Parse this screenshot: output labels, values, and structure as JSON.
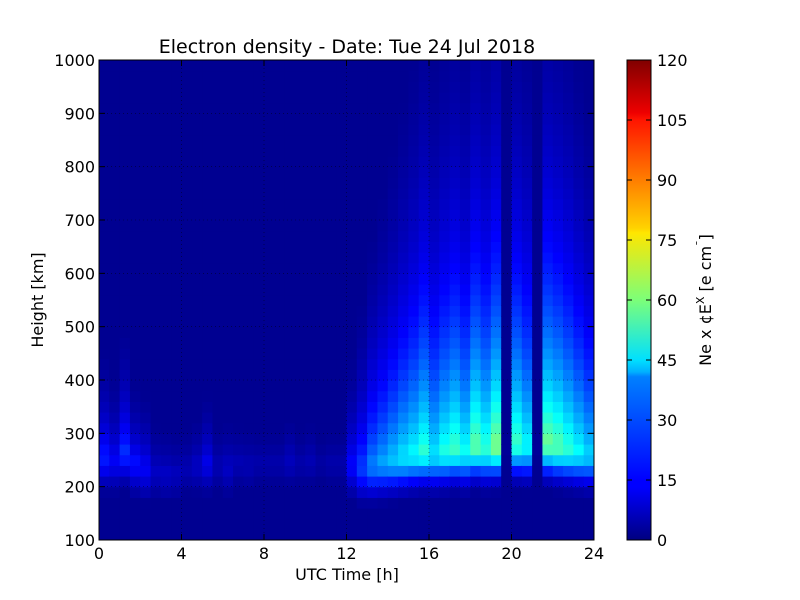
{
  "chart_data": {
    "type": "heatmap",
    "title": "Electron density - Date: Tue 24 Jul 2018",
    "xlabel": "UTC Time [h]",
    "ylabel": "Height [km]",
    "xlim": [
      0,
      24
    ],
    "ylim": [
      100,
      1000
    ],
    "x_ticks": [
      "0",
      "4",
      "8",
      "12",
      "16",
      "20",
      "24"
    ],
    "x_tick_values": [
      0,
      4,
      8,
      12,
      16,
      20,
      24
    ],
    "y_ticks": [
      "100",
      "200",
      "300",
      "400",
      "500",
      "600",
      "700",
      "800",
      "900",
      "1000"
    ],
    "y_tick_values": [
      100,
      200,
      300,
      400,
      500,
      600,
      700,
      800,
      900,
      1000
    ],
    "grid": true,
    "colormap": "jet",
    "colorbar": {
      "label": "Ne x ¢E^X  [e cm^-¯]",
      "label_text": "Ne x ¢E",
      "label_sup": "X",
      "label_unit": "[e cm",
      "label_unit_sup": "¯",
      "label_end": "]",
      "min": 0,
      "max": 120,
      "ticks": [
        "0",
        "15",
        "30",
        "45",
        "60",
        "75",
        "90",
        "105",
        "120"
      ],
      "tick_values": [
        0,
        15,
        30,
        45,
        60,
        75,
        90,
        105,
        120
      ]
    },
    "hours": [
      0,
      0.5,
      1,
      1.5,
      2,
      2.5,
      3,
      3.5,
      4,
      4.5,
      5,
      5.5,
      6,
      6.5,
      7,
      7.5,
      8,
      8.5,
      9,
      9.5,
      10,
      10.5,
      11,
      11.5,
      12,
      12.5,
      13,
      13.5,
      14,
      14.5,
      15,
      15.5,
      16,
      16.5,
      17,
      17.5,
      18,
      18.5,
      19,
      19.5,
      20,
      20.5,
      21,
      21.5,
      22,
      22.5,
      23,
      23.5
    ],
    "peak_density": [
      18,
      14,
      20,
      16,
      14,
      8,
      8,
      7,
      6,
      8,
      12,
      6,
      8,
      6,
      6,
      5,
      5,
      5,
      7,
      5,
      6,
      4,
      5,
      5,
      15,
      22,
      30,
      34,
      38,
      42,
      45,
      50,
      42,
      48,
      52,
      46,
      56,
      50,
      60,
      3,
      52,
      45,
      3,
      58,
      55,
      50,
      45,
      40
    ],
    "peak_height_km": [
      260,
      255,
      270,
      250,
      240,
      235,
      230,
      230,
      240,
      245,
      250,
      245,
      240,
      250,
      245,
      250,
      250,
      250,
      255,
      250,
      255,
      250,
      250,
      250,
      245,
      240,
      245,
      250,
      255,
      260,
      265,
      270,
      265,
      270,
      275,
      270,
      280,
      275,
      280,
      280,
      285,
      280,
      280,
      285,
      280,
      275,
      270,
      265
    ],
    "topside_scale_km": [
      90,
      80,
      100,
      70,
      70,
      60,
      60,
      60,
      60,
      60,
      70,
      60,
      60,
      60,
      60,
      60,
      60,
      60,
      60,
      60,
      60,
      60,
      60,
      60,
      100,
      130,
      160,
      180,
      200,
      220,
      240,
      260,
      250,
      260,
      270,
      260,
      280,
      270,
      280,
      80,
      270,
      260,
      80,
      280,
      270,
      260,
      240,
      220
    ]
  }
}
